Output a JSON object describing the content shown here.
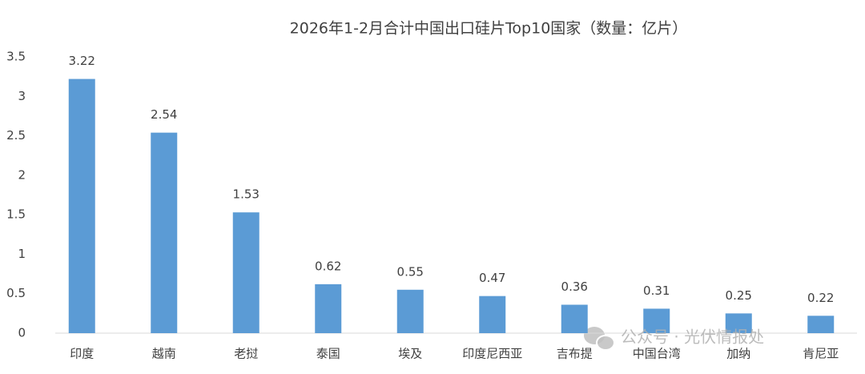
{
  "chart_data": {
    "type": "bar",
    "title": "2026年1-2月合计中国出口硅片Top10国家（数量：亿片）",
    "categories": [
      "印度",
      "越南",
      "老挝",
      "泰国",
      "埃及",
      "印度尼西亚",
      "吉布提",
      "中国台湾",
      "加纳",
      "肯尼亚"
    ],
    "values": [
      3.22,
      2.54,
      1.53,
      0.62,
      0.55,
      0.47,
      0.36,
      0.31,
      0.25,
      0.22
    ],
    "color": "#5b9bd5",
    "ylim": [
      0,
      3.5
    ],
    "yticks": [
      0,
      0.5,
      1,
      1.5,
      2,
      2.5,
      3,
      3.5
    ],
    "grid": false,
    "watermark": "公众号 · 光伏情报处"
  }
}
